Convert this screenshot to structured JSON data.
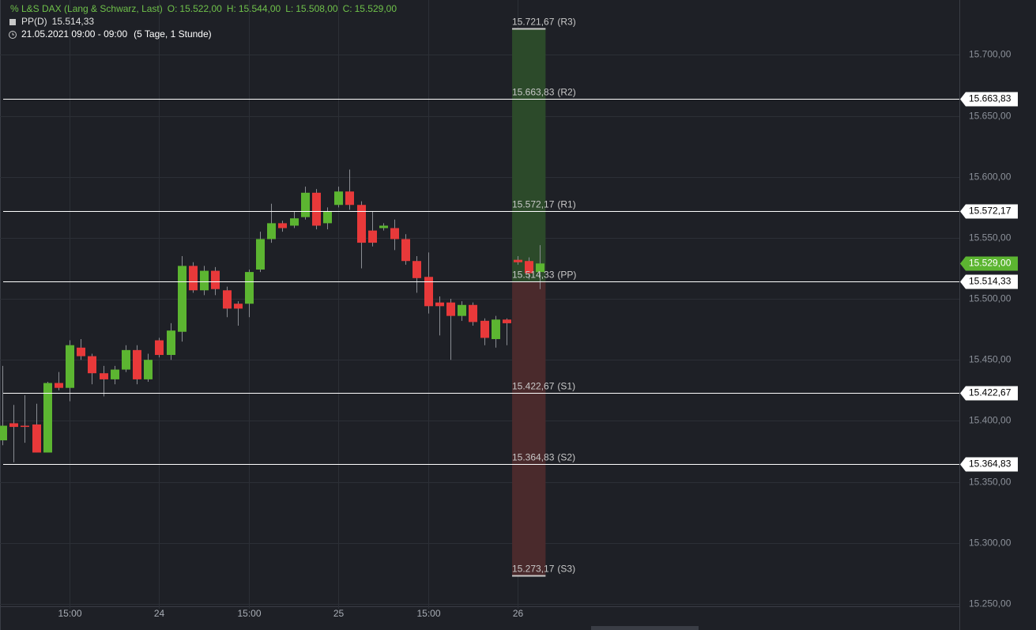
{
  "chart_data": {
    "type": "candlestick",
    "title": "L&S DAX (Lang & Schwarz, Last)",
    "header_ohlc": [
      {
        "key": "O:",
        "text": "15.522,00"
      },
      {
        "key": "H:",
        "text": "15.544,00"
      },
      {
        "key": "L:",
        "text": "15.508,00"
      },
      {
        "key": "C:",
        "text": "15.529,00"
      }
    ],
    "indicator": {
      "name": "PP(D)",
      "text": "15.514,33"
    },
    "period": "21.05.2021 09:00 - 09:00",
    "range": "(5 Tage, 1 Stunde)",
    "categories": [
      null,
      null,
      null,
      null,
      null,
      null,
      "15:00",
      null,
      null,
      null,
      null,
      null,
      null,
      null,
      "24",
      null,
      null,
      null,
      null,
      null,
      null,
      null,
      "15:00",
      null,
      null,
      null,
      null,
      null,
      null,
      null,
      "25",
      null,
      null,
      null,
      null,
      null,
      null,
      null,
      "15:00",
      null,
      null,
      null,
      null,
      null,
      null,
      null,
      "26",
      null,
      null
    ],
    "open": [
      15384,
      15398,
      15396,
      15397,
      15374,
      15431,
      15427,
      15460,
      15453,
      15439,
      15434,
      15442,
      15458,
      15434,
      15466,
      15454,
      15473,
      15527,
      15507,
      15523,
      15507,
      15496,
      15496,
      15524,
      15549,
      15562,
      15560,
      15567,
      15587,
      15562,
      15577,
      15588,
      15577,
      15556,
      15558,
      15558,
      15549,
      15531,
      15518,
      15497,
      15497,
      15486,
      15495,
      15482,
      15467,
      15483,
      15532,
      15531,
      15522
    ],
    "high": [
      15445,
      15413,
      15421,
      15414,
      15432,
      15440,
      15466,
      15467,
      15455,
      15445,
      15445,
      15462,
      15462,
      15455,
      15468,
      15480,
      15535,
      15530,
      15527,
      15526,
      15510,
      15498,
      15524,
      15555,
      15578,
      15564,
      15572,
      15592,
      15590,
      15575,
      15592,
      15606,
      15580,
      15572,
      15562,
      15565,
      15553,
      15535,
      15538,
      15502,
      15500,
      15498,
      15497,
      15484,
      15486,
      15484,
      15535,
      15534,
      15544
    ],
    "low": [
      15380,
      15366,
      15382,
      15374,
      15374,
      15425,
      15416,
      15450,
      15430,
      15420,
      15430,
      15440,
      15430,
      15432,
      15452,
      15450,
      15465,
      15505,
      15503,
      15503,
      15485,
      15478,
      15485,
      15522,
      15546,
      15555,
      15558,
      15565,
      15557,
      15557,
      15575,
      15573,
      15525,
      15543,
      15556,
      15540,
      15528,
      15505,
      15488,
      15470,
      15450,
      15482,
      15478,
      15462,
      15460,
      15462,
      15528,
      15516,
      15508
    ],
    "close": [
      15396,
      15395,
      15395,
      15374,
      15431,
      15427,
      15462,
      15453,
      15439,
      15434,
      15442,
      15458,
      15434,
      15450,
      15454,
      15474,
      15527,
      15507,
      15523,
      15508,
      15492,
      15492,
      15522,
      15549,
      15562,
      15558,
      15566,
      15587,
      15560,
      15572,
      15588,
      15577,
      15546,
      15546,
      15560,
      15549,
      15531,
      15517,
      15494,
      15494,
      15486,
      15495,
      15481,
      15468,
      15483,
      15480,
      15530,
      15521,
      15529
    ],
    "colors": {
      "up": "#5cb531",
      "down": "#e8393a",
      "zone_up": "#2c4a2a",
      "zone_down": "#4a2a2c"
    },
    "ylim": [
      15246,
      15745
    ],
    "yticks": [
      {
        "value": 15250,
        "label": "15.250,00"
      },
      {
        "value": 15300,
        "label": "15.300,00"
      },
      {
        "value": 15350,
        "label": "15.350,00"
      },
      {
        "value": 15400,
        "label": "15.400,00"
      },
      {
        "value": 15450,
        "label": "15.450,00"
      },
      {
        "value": 15500,
        "label": "15.500,00"
      },
      {
        "value": 15550,
        "label": "15.550,00"
      },
      {
        "value": 15600,
        "label": "15.600,00"
      },
      {
        "value": 15650,
        "label": "15.650,00"
      },
      {
        "value": 15700,
        "label": "15.700,00"
      }
    ],
    "grid": true,
    "last_price": {
      "value": 15529,
      "label": "15.529,00"
    },
    "pivots": [
      {
        "name": "(R3)",
        "value": 15721.67,
        "label": "15.721,67",
        "line": false
      },
      {
        "name": "(R2)",
        "value": 15663.83,
        "label": "15.663,83",
        "line": true
      },
      {
        "name": "(R1)",
        "value": 15572.17,
        "label": "15.572,17",
        "line": true
      },
      {
        "name": "(PP)",
        "value": 15514.33,
        "label": "15.514,33",
        "line": true
      },
      {
        "name": "(S1)",
        "value": 15422.67,
        "label": "15.422,67",
        "line": true
      },
      {
        "name": "(S2)",
        "value": 15364.83,
        "label": "15.364,83",
        "line": true
      },
      {
        "name": "(S3)",
        "value": 15273.17,
        "label": "15.273,17",
        "line": false
      }
    ]
  }
}
